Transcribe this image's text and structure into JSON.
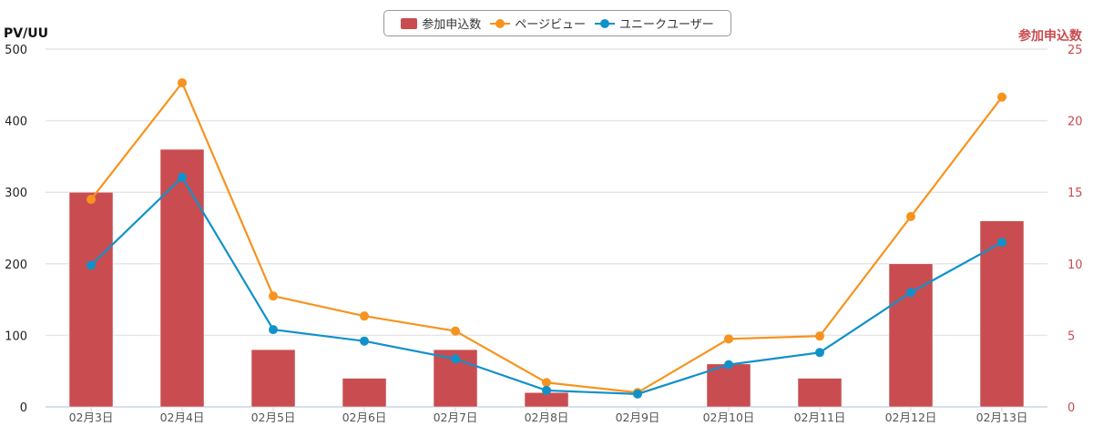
{
  "legend": {
    "items": [
      {
        "label": "参加申込数",
        "type": "bar",
        "color": "#c94d50"
      },
      {
        "label": "ページビュー",
        "type": "line",
        "color": "#f7931e"
      },
      {
        "label": "ユニークユーザー",
        "type": "line",
        "color": "#1191c9"
      }
    ]
  },
  "axes": {
    "left_title": "PV/UU",
    "right_title": "参加申込数"
  },
  "chart_data": {
    "type": "bar",
    "title": "",
    "categories": [
      "02月3日",
      "02月4日",
      "02月5日",
      "02月6日",
      "02月7日",
      "02月8日",
      "02月9日",
      "02月10日",
      "02月11日",
      "02月12日",
      "02月13日"
    ],
    "series": [
      {
        "name": "参加申込数",
        "type": "bar",
        "axis": "right",
        "color": "#c94d50",
        "values": [
          15,
          18,
          4,
          2,
          4,
          1,
          0,
          3,
          2,
          10,
          13
        ]
      },
      {
        "name": "ページビュー",
        "type": "line",
        "axis": "left",
        "color": "#f7931e",
        "values": [
          290,
          453,
          155,
          127,
          106,
          34,
          20,
          95,
          99,
          266,
          433
        ]
      },
      {
        "name": "ユニークユーザー",
        "type": "line",
        "axis": "left",
        "color": "#1191c9",
        "values": [
          198,
          321,
          108,
          92,
          67,
          23,
          18,
          59,
          76,
          160,
          230
        ]
      }
    ],
    "xlabel": "",
    "ylabel": "PV/UU",
    "ylabel_right": "参加申込数",
    "ylim": [
      0,
      500
    ],
    "ylim_right": [
      0,
      25
    ],
    "yticks": [
      0,
      100,
      200,
      300,
      400,
      500
    ],
    "yticks_right": [
      0,
      5,
      10,
      15,
      20,
      25
    ],
    "grid": true,
    "legend_position": "top"
  }
}
